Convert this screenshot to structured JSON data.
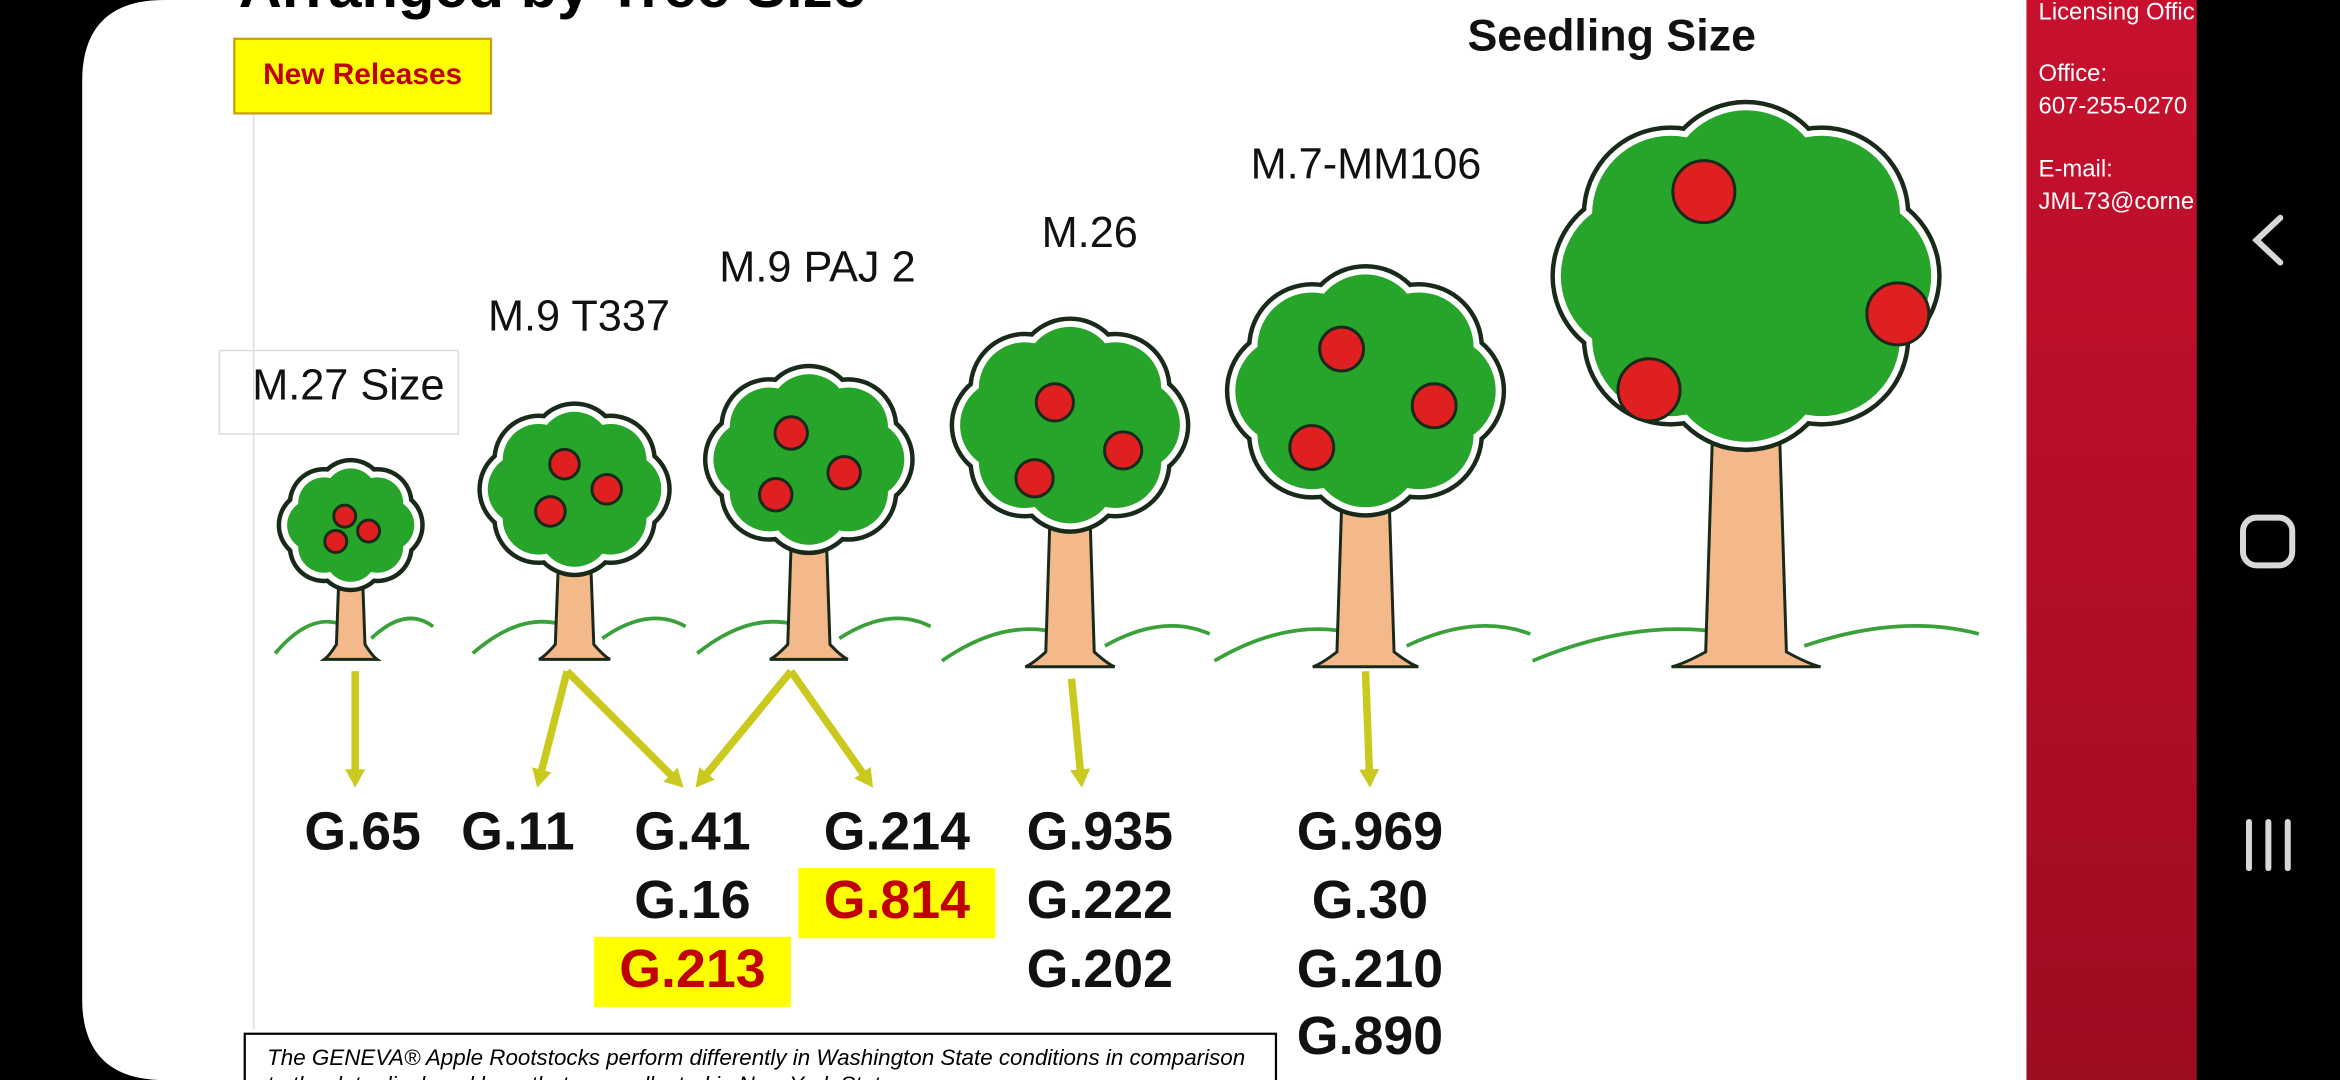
{
  "slide": {
    "title": "Arranged by Tree Size",
    "badge": "New Releases",
    "top_label": "Seedling Size",
    "size_labels": [
      "M.27 Size",
      "M.9 T337",
      "M.9 PAJ 2",
      "M.26",
      "M.7-MM106"
    ],
    "rootstocks": [
      [
        {
          "name": "G.65",
          "highlight": false
        }
      ],
      [
        {
          "name": "G.11",
          "highlight": false
        }
      ],
      [
        {
          "name": "G.41",
          "highlight": false
        },
        {
          "name": "G.16",
          "highlight": false
        },
        {
          "name": "G.213",
          "highlight": true
        }
      ],
      [
        {
          "name": "G.214",
          "highlight": false
        },
        {
          "name": "G.814",
          "highlight": true
        }
      ],
      [
        {
          "name": "G.935",
          "highlight": false
        },
        {
          "name": "G.222",
          "highlight": false
        },
        {
          "name": "G.202",
          "highlight": false
        }
      ],
      [
        {
          "name": "G.969",
          "highlight": false
        },
        {
          "name": "G.30",
          "highlight": false
        },
        {
          "name": "G.210",
          "highlight": false
        },
        {
          "name": "G.890",
          "highlight": false
        }
      ]
    ],
    "footnote": [
      "The GENEVA® Apple Rootstocks perform differently in Washington State conditions in comparison",
      "to the data displayed here that was collected in New York State."
    ]
  },
  "sidebar": {
    "heading": "Licensing Offic",
    "office_label": "Office:",
    "phone": "607-255-0270",
    "email_label": "E-mail:",
    "email": "JML73@corne"
  }
}
